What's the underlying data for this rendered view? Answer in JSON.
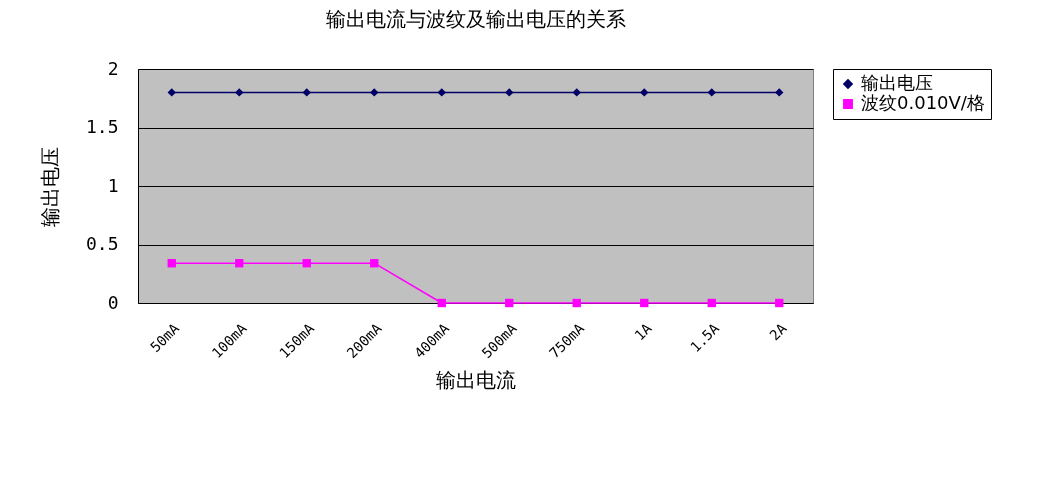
{
  "chart_data": {
    "type": "line",
    "title": "输出电流与波纹及输出电压的关系",
    "xlabel": "输出电流",
    "ylabel": "输出电压",
    "categories": [
      "50mA",
      "100mA",
      "150mA",
      "200mA",
      "400mA",
      "500mA",
      "750mA",
      "1A",
      "1.5A",
      "2A"
    ],
    "series": [
      {
        "name": "输出电压",
        "color": "#000066",
        "marker": "diamond",
        "values": [
          1.8,
          1.8,
          1.8,
          1.8,
          1.8,
          1.8,
          1.8,
          1.8,
          1.8,
          1.8
        ]
      },
      {
        "name": "波纹0.010V/格",
        "color": "#ff00ff",
        "marker": "square",
        "values": [
          0.34,
          0.34,
          0.34,
          0.34,
          0,
          0,
          0,
          0,
          0,
          0
        ]
      }
    ],
    "ylim": [
      0,
      2
    ],
    "yticks": [
      0,
      0.5,
      1,
      1.5,
      2
    ],
    "grid": "y",
    "legend": "right"
  }
}
